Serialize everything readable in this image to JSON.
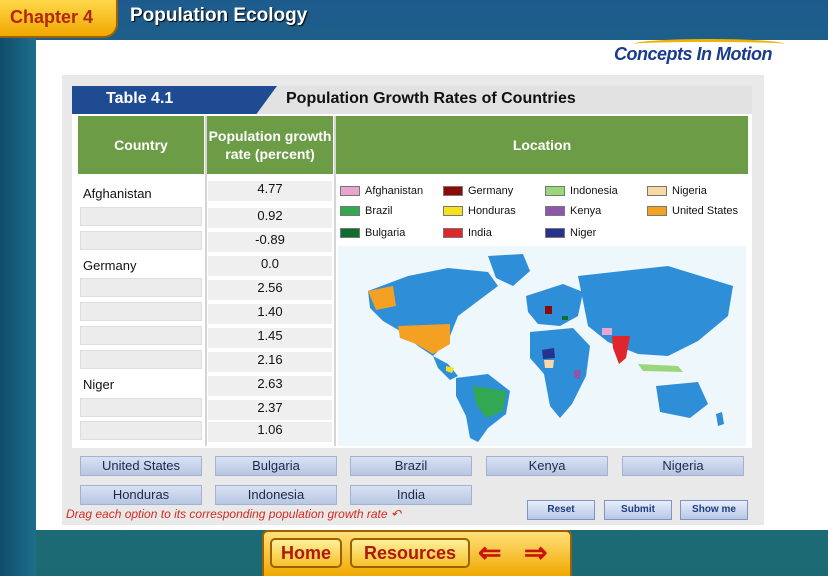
{
  "header": {
    "chapter_label": "Chapter 4",
    "title": "Population Ecology",
    "brand": "Concepts In Motion"
  },
  "table": {
    "label": "Table 4.1",
    "title": "Population Growth Rates of Countries",
    "headers": {
      "country": "Country",
      "rate": "Population growth rate (percent)",
      "location": "Location"
    },
    "rows": [
      {
        "country": "Afghanistan",
        "rate": "4.77"
      },
      {
        "country": "",
        "rate": "0.92"
      },
      {
        "country": "",
        "rate": "-0.89"
      },
      {
        "country": "Germany",
        "rate": "0.0"
      },
      {
        "country": "",
        "rate": "2.56"
      },
      {
        "country": "",
        "rate": "1.40"
      },
      {
        "country": "",
        "rate": "1.45"
      },
      {
        "country": "",
        "rate": "2.16"
      },
      {
        "country": "Niger",
        "rate": "2.63"
      },
      {
        "country": "",
        "rate": "2.37"
      },
      {
        "country": "",
        "rate": "1.06"
      }
    ]
  },
  "legend": [
    {
      "label": "Afghanistan",
      "color": "#e8a6cf"
    },
    {
      "label": "Germany",
      "color": "#8b0a0a"
    },
    {
      "label": "Indonesia",
      "color": "#9bd67a"
    },
    {
      "label": "Nigeria",
      "color": "#f8d9a6"
    },
    {
      "label": "Brazil",
      "color": "#33a852"
    },
    {
      "label": "Honduras",
      "color": "#f6e21c"
    },
    {
      "label": "Kenya",
      "color": "#8d58a8"
    },
    {
      "label": "United States",
      "color": "#f4a023"
    },
    {
      "label": "Bulgaria",
      "color": "#0d6e2e"
    },
    {
      "label": "India",
      "color": "#e0262d"
    },
    {
      "label": "Niger",
      "color": "#27328c"
    }
  ],
  "options": {
    "row1": [
      "United States",
      "Bulgaria",
      "Brazil",
      "Kenya",
      "Nigeria"
    ],
    "row2": [
      "Honduras",
      "Indonesia",
      "India"
    ]
  },
  "instruction": "Drag each option to its corresponding population growth rate",
  "buttons": {
    "reset": "Reset",
    "submit": "Submit",
    "show_me": "Show me"
  },
  "nav": {
    "home": "Home",
    "resources": "Resources"
  },
  "colors": {
    "map_ocean": "#ffffff",
    "map_land": "#2f8ed8",
    "table_header": "#6c9c46",
    "table_label": "#1e4b91"
  }
}
